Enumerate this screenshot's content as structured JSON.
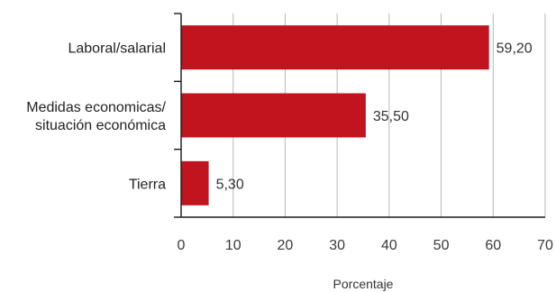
{
  "chart_data": {
    "type": "bar",
    "orientation": "horizontal",
    "categories": [
      [
        "Laboral/salarial"
      ],
      [
        "Medidas economicas/",
        "situación económica"
      ],
      [
        "Tierra"
      ]
    ],
    "values": [
      59.2,
      35.5,
      5.3
    ],
    "data_labels": [
      "59,20",
      "35,50",
      "5,30"
    ],
    "xlim": [
      0,
      70
    ],
    "xticks": [
      0,
      10,
      20,
      30,
      40,
      50,
      60,
      70
    ],
    "xtick_labels": [
      "0",
      "10",
      "20",
      "30",
      "40",
      "50",
      "60",
      "70"
    ],
    "xlabel": "Porcentaje",
    "grid": "vertical",
    "bar_color": "#c0151f"
  }
}
